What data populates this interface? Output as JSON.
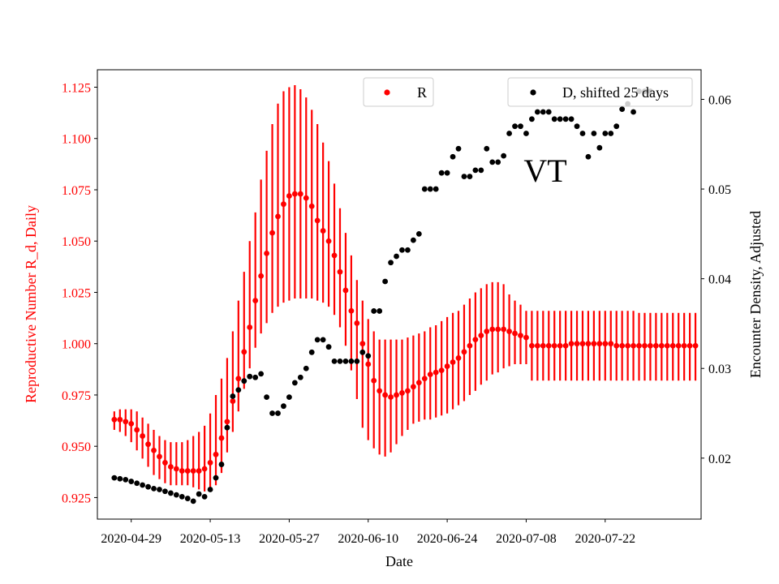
{
  "chart_data": {
    "type": "scatter",
    "annotation": "VT",
    "xlabel": "Date",
    "ylabel_left": "Reproductive Number R_d, Daily",
    "ylabel_right": "Encounter Density, Adjusted",
    "x_start": "2020-04-26",
    "x_ticks": [
      "2020-04-29",
      "2020-05-13",
      "2020-05-27",
      "2020-06-10",
      "2020-06-24",
      "2020-07-08",
      "2020-07-22"
    ],
    "left_ticks": [
      "0.925",
      "0.950",
      "0.975",
      "1.000",
      "1.025",
      "1.050",
      "1.075",
      "1.100",
      "1.125"
    ],
    "right_ticks": [
      "0.02",
      "0.03",
      "0.04",
      "0.05",
      "0.06"
    ],
    "xlim": [
      "2020-04-23",
      "2020-08-08"
    ],
    "ylim_left": [
      0.9145,
      1.1335
    ],
    "ylim_right": [
      0.0132,
      0.0633
    ],
    "legend": {
      "placement": "top-right"
    },
    "colors": {
      "R": "#ff0000",
      "D": "#000000"
    },
    "series_R": {
      "name": "R",
      "color": "#ff0000",
      "dates": [
        "2020-04-26",
        "2020-04-27",
        "2020-04-28",
        "2020-04-29",
        "2020-04-30",
        "2020-05-01",
        "2020-05-02",
        "2020-05-03",
        "2020-05-04",
        "2020-05-05",
        "2020-05-06",
        "2020-05-07",
        "2020-05-08",
        "2020-05-09",
        "2020-05-10",
        "2020-05-11",
        "2020-05-12",
        "2020-05-13",
        "2020-05-14",
        "2020-05-15",
        "2020-05-16",
        "2020-05-17",
        "2020-05-18",
        "2020-05-19",
        "2020-05-20",
        "2020-05-21",
        "2020-05-22",
        "2020-05-23",
        "2020-05-24",
        "2020-05-25",
        "2020-05-26",
        "2020-05-27",
        "2020-05-28",
        "2020-05-29",
        "2020-05-30",
        "2020-05-31",
        "2020-06-01",
        "2020-06-02",
        "2020-06-03",
        "2020-06-04",
        "2020-06-05",
        "2020-06-06",
        "2020-06-07",
        "2020-06-08",
        "2020-06-09",
        "2020-06-10",
        "2020-06-11",
        "2020-06-12",
        "2020-06-13",
        "2020-06-14",
        "2020-06-15",
        "2020-06-16",
        "2020-06-17",
        "2020-06-18",
        "2020-06-19",
        "2020-06-20",
        "2020-06-21",
        "2020-06-22",
        "2020-06-23",
        "2020-06-24",
        "2020-06-25",
        "2020-06-26",
        "2020-06-27",
        "2020-06-28",
        "2020-06-29",
        "2020-06-30",
        "2020-07-01",
        "2020-07-02",
        "2020-07-03",
        "2020-07-04",
        "2020-07-05",
        "2020-07-06",
        "2020-07-07",
        "2020-07-08",
        "2020-07-09",
        "2020-07-10",
        "2020-07-11",
        "2020-07-12",
        "2020-07-13",
        "2020-07-14",
        "2020-07-15",
        "2020-07-16",
        "2020-07-17",
        "2020-07-18",
        "2020-07-19",
        "2020-07-20",
        "2020-07-21",
        "2020-07-22",
        "2020-07-23",
        "2020-07-24",
        "2020-07-25",
        "2020-07-26",
        "2020-07-27",
        "2020-07-28",
        "2020-07-29",
        "2020-07-30",
        "2020-07-31",
        "2020-08-01",
        "2020-08-02",
        "2020-08-03",
        "2020-08-04",
        "2020-08-05",
        "2020-08-06",
        "2020-08-07"
      ],
      "values": [
        0.963,
        0.963,
        0.962,
        0.961,
        0.958,
        0.955,
        0.951,
        0.948,
        0.945,
        0.942,
        0.94,
        0.939,
        0.938,
        0.938,
        0.938,
        0.938,
        0.939,
        0.942,
        0.946,
        0.954,
        0.962,
        0.972,
        0.983,
        0.996,
        1.008,
        1.021,
        1.033,
        1.044,
        1.054,
        1.062,
        1.068,
        1.072,
        1.073,
        1.073,
        1.071,
        1.067,
        1.06,
        1.055,
        1.05,
        1.043,
        1.035,
        1.026,
        1.016,
        1.01,
        1.0,
        0.99,
        0.982,
        0.977,
        0.975,
        0.974,
        0.975,
        0.976,
        0.977,
        0.979,
        0.981,
        0.983,
        0.985,
        0.986,
        0.987,
        0.989,
        0.991,
        0.993,
        0.996,
        0.999,
        1.002,
        1.004,
        1.006,
        1.007,
        1.007,
        1.007,
        1.006,
        1.005,
        1.004,
        1.003,
        0.999,
        0.999,
        0.999,
        0.999,
        0.999,
        0.999,
        0.999,
        1.0,
        1.0,
        1.0,
        1.0,
        1.0,
        1.0,
        1.0,
        1.0,
        0.999,
        0.999,
        0.999,
        0.999,
        0.999,
        0.999,
        0.999,
        0.999,
        0.999,
        0.999,
        0.999,
        0.999,
        0.999,
        0.999,
        0.999
      ],
      "err_low": [
        0.958,
        0.957,
        0.955,
        0.952,
        0.948,
        0.944,
        0.94,
        0.936,
        0.934,
        0.932,
        0.931,
        0.931,
        0.931,
        0.931,
        0.93,
        0.929,
        0.928,
        0.929,
        0.931,
        0.937,
        0.947,
        0.957,
        0.967,
        0.978,
        0.988,
        0.998,
        1.005,
        1.01,
        1.015,
        1.018,
        1.02,
        1.021,
        1.022,
        1.022,
        1.022,
        1.022,
        1.021,
        1.02,
        1.018,
        1.014,
        1.008,
        0.999,
        0.987,
        0.973,
        0.959,
        0.953,
        0.949,
        0.946,
        0.945,
        0.947,
        0.951,
        0.955,
        0.958,
        0.961,
        0.962,
        0.963,
        0.963,
        0.964,
        0.965,
        0.966,
        0.968,
        0.97,
        0.972,
        0.975,
        0.977,
        0.98,
        0.982,
        0.985,
        0.986,
        0.988,
        0.989,
        0.99,
        0.99,
        0.99,
        0.982,
        0.982,
        0.982,
        0.982,
        0.982,
        0.982,
        0.982,
        0.982,
        0.982,
        0.982,
        0.982,
        0.982,
        0.982,
        0.982,
        0.982,
        0.982,
        0.982,
        0.982,
        0.982,
        0.982,
        0.982,
        0.982,
        0.982,
        0.982,
        0.982,
        0.982,
        0.982,
        0.982,
        0.982,
        0.982
      ],
      "err_high": [
        0.967,
        0.968,
        0.968,
        0.968,
        0.967,
        0.964,
        0.961,
        0.958,
        0.955,
        0.953,
        0.952,
        0.952,
        0.952,
        0.953,
        0.955,
        0.957,
        0.96,
        0.966,
        0.975,
        0.983,
        0.993,
        1.006,
        1.021,
        1.035,
        1.05,
        1.064,
        1.08,
        1.094,
        1.107,
        1.117,
        1.123,
        1.125,
        1.126,
        1.124,
        1.12,
        1.114,
        1.107,
        1.098,
        1.089,
        1.078,
        1.066,
        1.054,
        1.043,
        1.031,
        1.021,
        1.012,
        1.006,
        1.002,
        1.002,
        1.002,
        1.002,
        1.002,
        1.003,
        1.004,
        1.005,
        1.006,
        1.008,
        1.009,
        1.011,
        1.013,
        1.015,
        1.016,
        1.019,
        1.022,
        1.025,
        1.027,
        1.029,
        1.03,
        1.03,
        1.029,
        1.024,
        1.021,
        1.019,
        1.016,
        1.016,
        1.016,
        1.016,
        1.016,
        1.016,
        1.016,
        1.016,
        1.016,
        1.016,
        1.016,
        1.016,
        1.016,
        1.016,
        1.016,
        1.016,
        1.016,
        1.016,
        1.016,
        1.016,
        1.015,
        1.015,
        1.015,
        1.015,
        1.015,
        1.015,
        1.015,
        1.015,
        1.015,
        1.015,
        1.015
      ]
    },
    "series_D": {
      "name": "D, shifted 25 days",
      "color": "#000000",
      "dates": [
        "2020-04-26",
        "2020-04-27",
        "2020-04-28",
        "2020-04-29",
        "2020-04-30",
        "2020-05-01",
        "2020-05-02",
        "2020-05-03",
        "2020-05-04",
        "2020-05-05",
        "2020-05-06",
        "2020-05-07",
        "2020-05-08",
        "2020-05-09",
        "2020-05-10",
        "2020-05-11",
        "2020-05-12",
        "2020-05-13",
        "2020-05-14",
        "2020-05-15",
        "2020-05-16",
        "2020-05-17",
        "2020-05-18",
        "2020-05-19",
        "2020-05-20",
        "2020-05-21",
        "2020-05-22",
        "2020-05-23",
        "2020-05-24",
        "2020-05-25",
        "2020-05-26",
        "2020-05-27",
        "2020-05-28",
        "2020-05-29",
        "2020-05-30",
        "2020-05-31",
        "2020-06-01",
        "2020-06-02",
        "2020-06-03",
        "2020-06-04",
        "2020-06-05",
        "2020-06-06",
        "2020-06-07",
        "2020-06-08",
        "2020-06-09",
        "2020-06-10",
        "2020-06-11",
        "2020-06-12",
        "2020-06-13",
        "2020-06-14",
        "2020-06-15",
        "2020-06-16",
        "2020-06-17",
        "2020-06-18",
        "2020-06-19",
        "2020-06-20",
        "2020-06-21",
        "2020-06-22",
        "2020-06-23",
        "2020-06-24",
        "2020-06-25",
        "2020-06-26",
        "2020-06-27",
        "2020-06-28",
        "2020-06-29",
        "2020-06-30",
        "2020-07-01",
        "2020-07-02",
        "2020-07-03",
        "2020-07-04",
        "2020-07-05",
        "2020-07-06",
        "2020-07-07",
        "2020-07-08",
        "2020-07-09",
        "2020-07-10",
        "2020-07-11",
        "2020-07-12",
        "2020-07-13",
        "2020-07-14",
        "2020-07-15",
        "2020-07-16",
        "2020-07-17",
        "2020-07-18",
        "2020-07-19",
        "2020-07-20",
        "2020-07-21",
        "2020-07-22",
        "2020-07-23",
        "2020-07-24",
        "2020-07-25",
        "2020-07-26",
        "2020-07-27",
        "2020-07-28",
        "2020-07-29",
        "2020-07-30"
      ],
      "values": [
        0.0178,
        0.0177,
        0.0176,
        0.0174,
        0.0172,
        0.017,
        0.0168,
        0.0166,
        0.0165,
        0.0163,
        0.0161,
        0.0159,
        0.0157,
        0.0155,
        0.0152,
        0.016,
        0.0157,
        0.0165,
        0.0178,
        0.0193,
        0.0234,
        0.0269,
        0.0276,
        0.0286,
        0.0291,
        0.029,
        0.0294,
        0.0268,
        0.025,
        0.025,
        0.0258,
        0.0268,
        0.0284,
        0.029,
        0.03,
        0.0318,
        0.0332,
        0.0332,
        0.0324,
        0.0308,
        0.0308,
        0.0308,
        0.0308,
        0.0308,
        0.0318,
        0.0314,
        0.0364,
        0.0364,
        0.0397,
        0.0418,
        0.0425,
        0.0432,
        0.0432,
        0.0443,
        0.045,
        0.05,
        0.05,
        0.05,
        0.0518,
        0.0518,
        0.0536,
        0.0545,
        0.0514,
        0.0514,
        0.0521,
        0.0521,
        0.0545,
        0.053,
        0.053,
        0.0537,
        0.0562,
        0.057,
        0.057,
        0.0562,
        0.0578,
        0.0586,
        0.0586,
        0.0586,
        0.0578,
        0.0578,
        0.0578,
        0.0578,
        0.057,
        0.0562,
        0.0536,
        0.0562,
        0.0546,
        0.0562,
        0.0562,
        0.057,
        0.0589,
        0.0595,
        0.0586,
        0.0609,
        0.0609,
        0.0609
      ]
    }
  }
}
